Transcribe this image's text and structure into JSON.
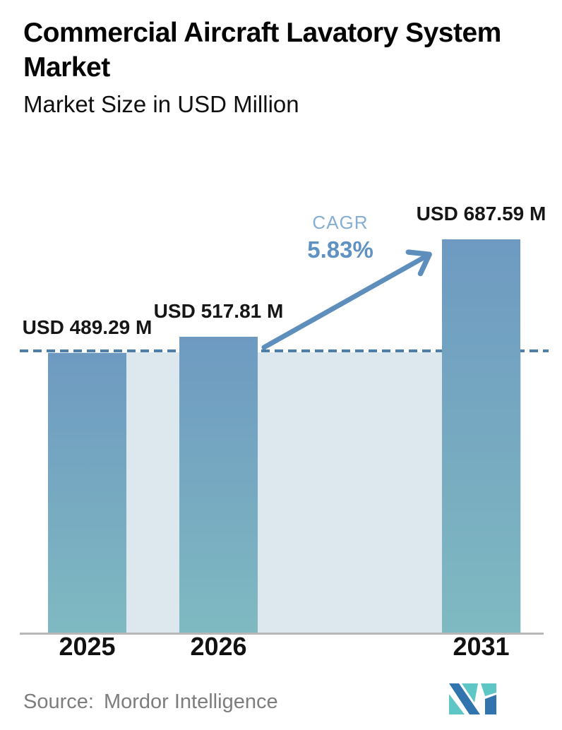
{
  "header": {
    "title_lines": [
      "Commercial Aircraft Lavatory System",
      "Market"
    ],
    "subtitle": "Market Size in USD Million"
  },
  "chart_data": {
    "type": "bar",
    "title": "Commercial Aircraft Lavatory System Market",
    "subtitle": "Market Size in USD Million",
    "unit": "USD Million",
    "categories": [
      "2025",
      "2026",
      "2031"
    ],
    "values": [
      489.29,
      517.81,
      687.59
    ],
    "labels": [
      "USD 489.29 M",
      "USD 517.81 M",
      "USD 687.59 M"
    ],
    "cagr": {
      "label": "CAGR",
      "value": "5.83%"
    },
    "annotations": {
      "dashed_reference_level": 489.29,
      "arrow": "from 2026 bar to 2031 bar indicating growth"
    },
    "ylim": [
      0,
      687.59
    ],
    "grid": false,
    "legend": false,
    "yaxis_visible": false
  },
  "footer": {
    "source_label": "Source:",
    "source_value": "Mordor Intelligence",
    "logo": "mordor-intelligence-logo"
  },
  "colors": {
    "bar_top_color": "#6e9ac1",
    "bar_bottom_color": "#7fb9c1",
    "band_color": "#dce7ee",
    "dashed_color": "#4d7fa9",
    "arrow_color": "#5d8ebc",
    "cagr_label_color": "#85aed2",
    "cagr_value_color": "#5f92c2",
    "axis_color": "#b5b7b9",
    "source_color": "#7d7d7d",
    "logo_dark": "#3174ae",
    "logo_teal": "#5ec7c6"
  }
}
